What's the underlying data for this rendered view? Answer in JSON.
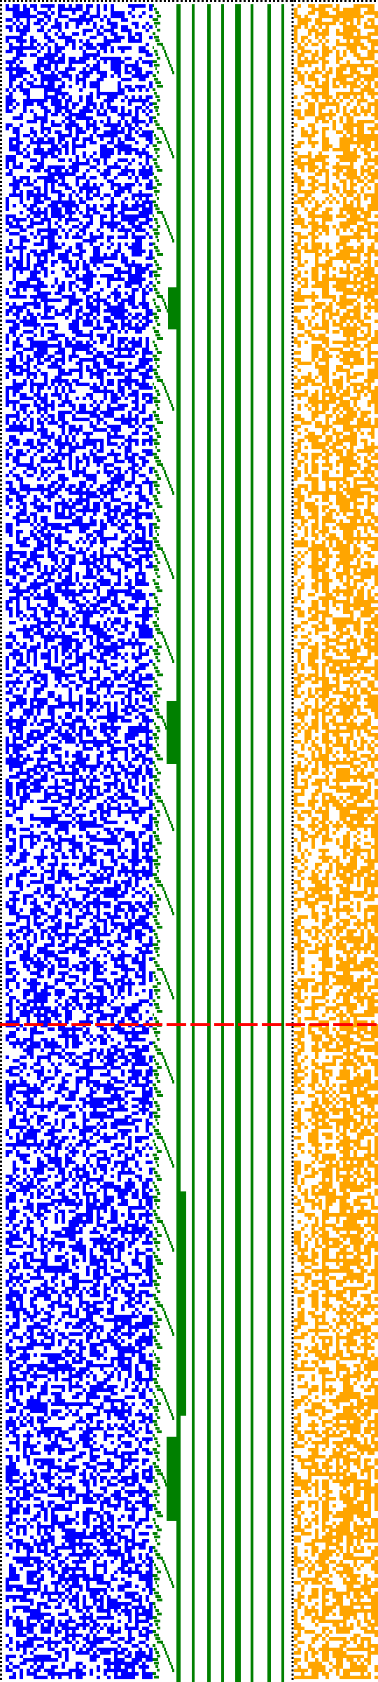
{
  "colors": {
    "background": "#ffffff",
    "left_grid": "#0000ff",
    "middle_bars": "#008000",
    "right_grid": "#ffa500",
    "marker_line": "#ff0000",
    "border_dots": "#000000"
  },
  "left_grid": {
    "fill_ratio": 0.52,
    "seed": 17
  },
  "right_grid": {
    "fill_ratio": 0.55,
    "seed": 91
  },
  "middle_bars": {
    "solid_bar_count": 8,
    "staircase_present": true
  },
  "marker": {
    "style": "dashed",
    "present": true
  },
  "borders": {
    "style": "dotted",
    "top": true,
    "left": true,
    "divider": true
  }
}
